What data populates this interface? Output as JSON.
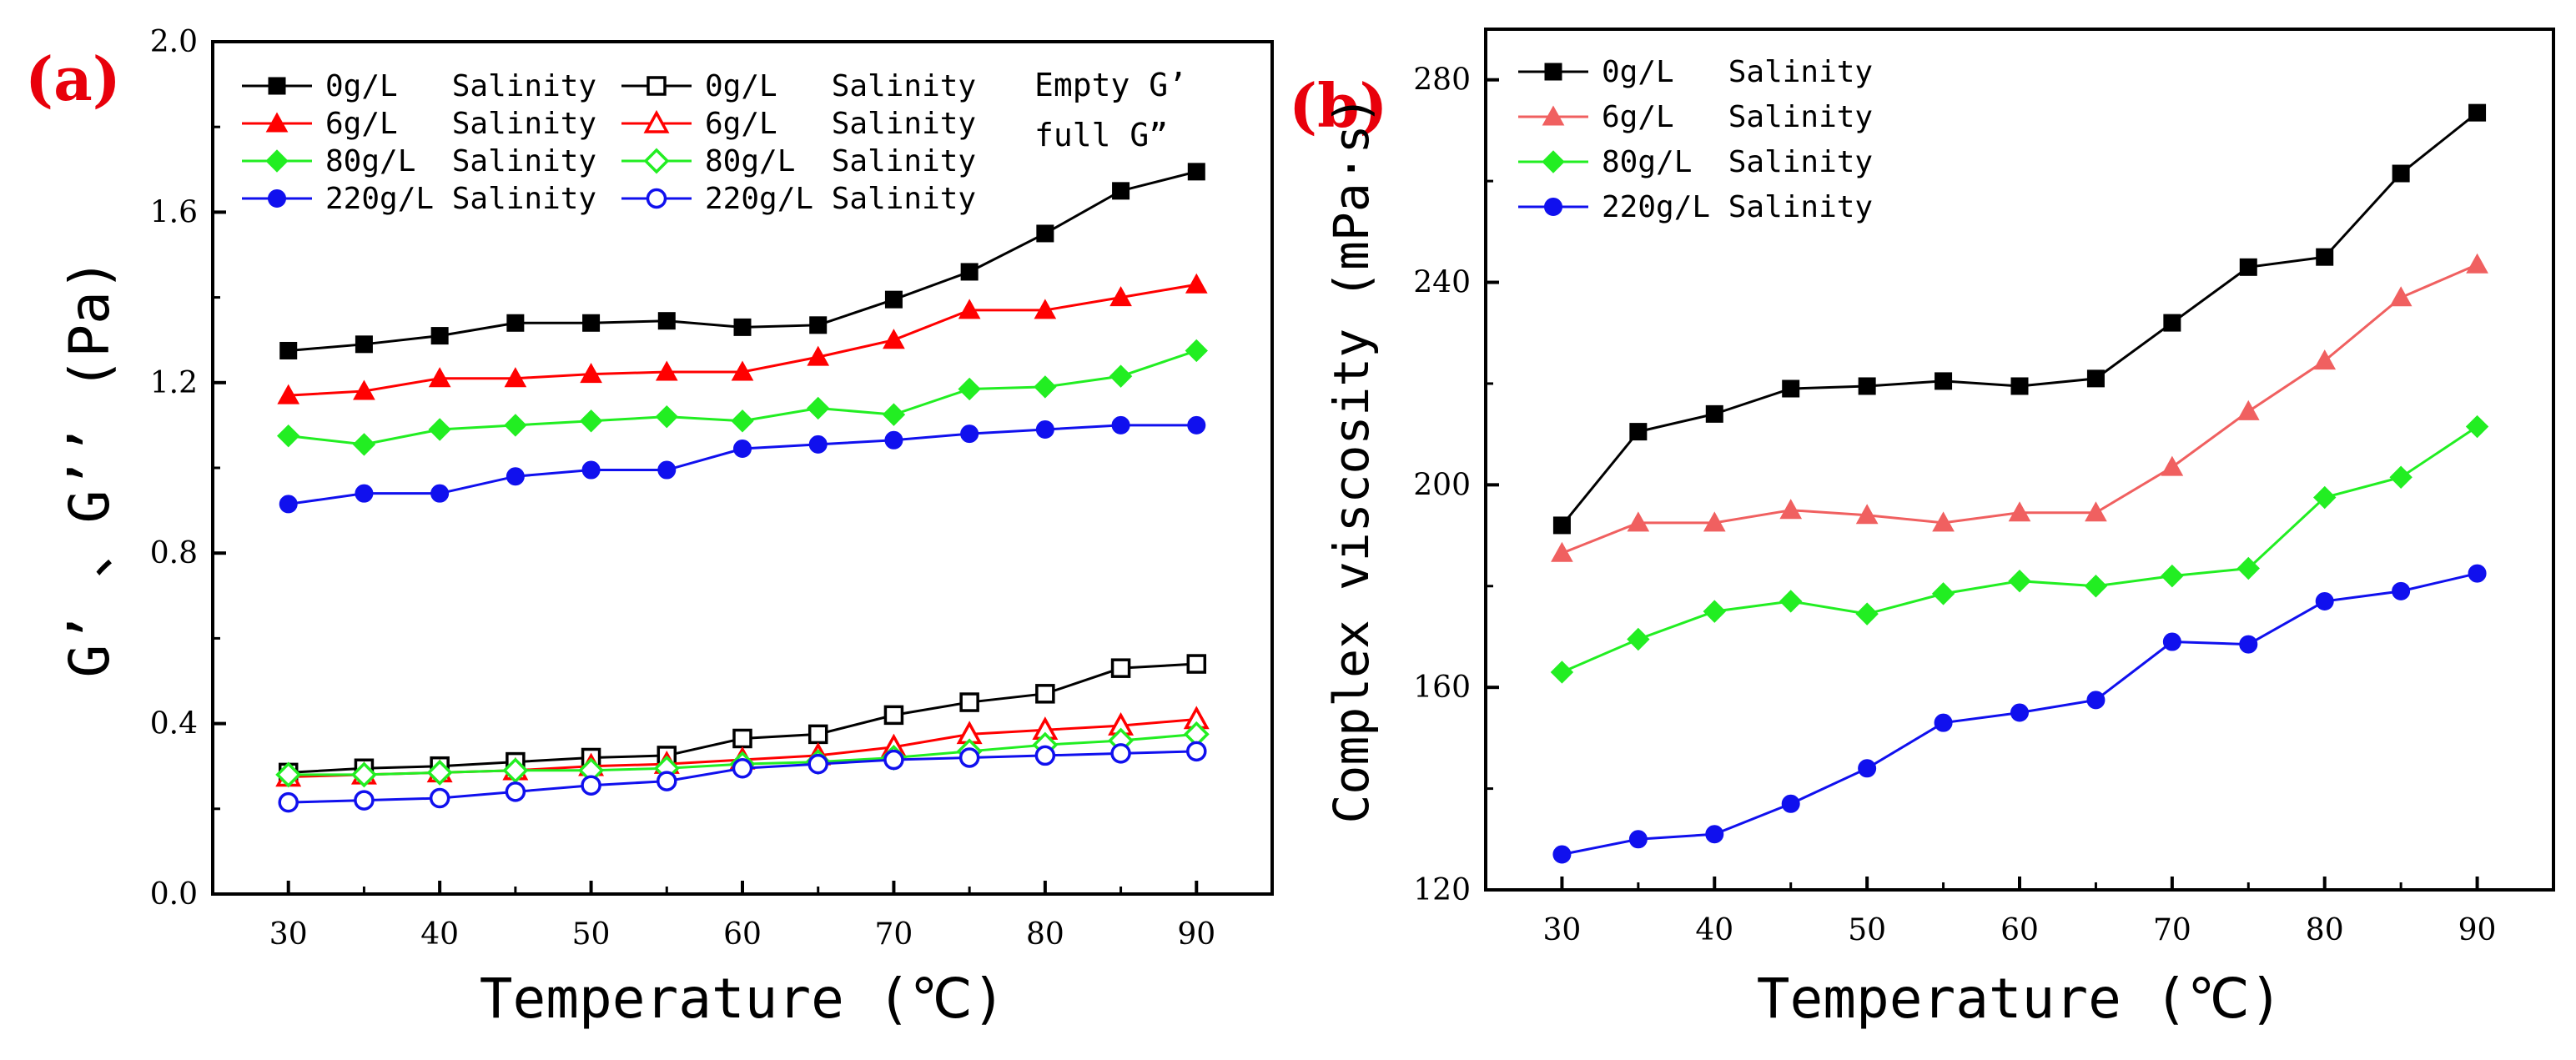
{
  "panels": {
    "a": {
      "label": "(a)",
      "legend_note_1": "Empty G’",
      "legend_note_2": "full  G”"
    },
    "b": {
      "label": "(b)"
    }
  },
  "chart_data": [
    {
      "type": "line",
      "panel": "a",
      "title": "",
      "xlabel": "Temperature (℃)",
      "ylabel": "G’ 、G’’ (Pa)",
      "xlim": [
        25,
        95
      ],
      "ylim": [
        0,
        2.0
      ],
      "xticks": [
        30,
        40,
        50,
        60,
        70,
        80,
        90
      ],
      "yticks": [
        0.0,
        0.4,
        0.8,
        1.2,
        1.6,
        2.0
      ],
      "ytick_labels": [
        "0.0",
        "0.4",
        "0.8",
        "1.2",
        "1.6",
        "2.0"
      ],
      "x": [
        30,
        35,
        40,
        45,
        50,
        55,
        60,
        65,
        70,
        75,
        80,
        85,
        90
      ],
      "series": [
        {
          "name": "0g/L   Salinity",
          "group": "G'",
          "color": "#000000",
          "marker": "square",
          "filled": true,
          "values": [
            1.275,
            1.29,
            1.31,
            1.34,
            1.34,
            1.345,
            1.33,
            1.335,
            1.395,
            1.46,
            1.55,
            1.65,
            1.695
          ]
        },
        {
          "name": "6g/L   Salinity",
          "group": "G'",
          "color": "#ff0000",
          "marker": "triangle",
          "filled": true,
          "values": [
            1.17,
            1.18,
            1.21,
            1.21,
            1.22,
            1.225,
            1.225,
            1.26,
            1.3,
            1.37,
            1.37,
            1.4,
            1.43
          ]
        },
        {
          "name": "80g/L  Salinity",
          "group": "G'",
          "color": "#22ee22",
          "marker": "diamond",
          "filled": true,
          "values": [
            1.075,
            1.055,
            1.09,
            1.1,
            1.11,
            1.12,
            1.11,
            1.14,
            1.125,
            1.185,
            1.19,
            1.215,
            1.275
          ]
        },
        {
          "name": "220g/L Salinity",
          "group": "G'",
          "color": "#1010ee",
          "marker": "circle",
          "filled": true,
          "values": [
            0.915,
            0.94,
            0.94,
            0.98,
            0.995,
            0.995,
            1.045,
            1.055,
            1.065,
            1.08,
            1.09,
            1.1,
            1.1
          ]
        },
        {
          "name": "0g/L   Salinity",
          "group": "G''",
          "color": "#000000",
          "marker": "square",
          "filled": false,
          "values": [
            0.285,
            0.295,
            0.3,
            0.31,
            0.32,
            0.325,
            0.365,
            0.375,
            0.42,
            0.45,
            0.47,
            0.53,
            0.54
          ]
        },
        {
          "name": "6g/L   Salinity",
          "group": "G''",
          "color": "#ff0000",
          "marker": "triangle",
          "filled": false,
          "values": [
            0.275,
            0.28,
            0.285,
            0.29,
            0.3,
            0.305,
            0.315,
            0.325,
            0.345,
            0.375,
            0.385,
            0.395,
            0.41
          ]
        },
        {
          "name": "80g/L  Salinity",
          "group": "G''",
          "color": "#22ee22",
          "marker": "diamond",
          "filled": false,
          "values": [
            0.28,
            0.28,
            0.285,
            0.29,
            0.29,
            0.295,
            0.305,
            0.31,
            0.32,
            0.335,
            0.35,
            0.36,
            0.375
          ]
        },
        {
          "name": "220g/L Salinity",
          "group": "G''",
          "color": "#1010ee",
          "marker": "circle",
          "filled": false,
          "values": [
            0.215,
            0.22,
            0.225,
            0.24,
            0.255,
            0.265,
            0.295,
            0.305,
            0.315,
            0.32,
            0.325,
            0.33,
            0.335
          ]
        }
      ]
    },
    {
      "type": "line",
      "panel": "b",
      "title": "",
      "xlabel": "Temperature (℃)",
      "ylabel": "Complex viscosity (mPa·s)",
      "xlim": [
        25,
        95
      ],
      "ylim": [
        120,
        290
      ],
      "xticks": [
        30,
        40,
        50,
        60,
        70,
        80,
        90
      ],
      "yticks": [
        120,
        160,
        200,
        240,
        280
      ],
      "ytick_labels": [
        "120",
        "160",
        "200",
        "240",
        "280"
      ],
      "x": [
        30,
        35,
        40,
        45,
        50,
        55,
        60,
        65,
        70,
        75,
        80,
        85,
        90
      ],
      "series": [
        {
          "name": "0g/L   Salinity",
          "color": "#000000",
          "marker": "square",
          "filled": true,
          "values": [
            192,
            210.5,
            214,
            219,
            219.5,
            220.5,
            219.5,
            221,
            232,
            243,
            245,
            261.5,
            273.5
          ]
        },
        {
          "name": "6g/L   Salinity",
          "color": "#f06060",
          "marker": "triangle",
          "filled": true,
          "values": [
            186.5,
            192.5,
            192.5,
            195,
            194,
            192.5,
            194.5,
            194.5,
            203.5,
            214.5,
            224.5,
            237,
            243.5
          ]
        },
        {
          "name": "80g/L  Salinity",
          "color": "#22ee22",
          "marker": "diamond",
          "filled": true,
          "values": [
            163,
            169.5,
            175,
            177,
            174.5,
            178.5,
            181,
            180,
            182,
            183.5,
            197.5,
            201.5,
            211.5
          ]
        },
        {
          "name": "220g/L Salinity",
          "color": "#1010ee",
          "marker": "circle",
          "filled": true,
          "values": [
            127,
            130,
            131,
            137,
            144,
            153,
            155,
            157.5,
            169,
            168.5,
            177,
            179,
            182.5
          ]
        }
      ]
    }
  ]
}
